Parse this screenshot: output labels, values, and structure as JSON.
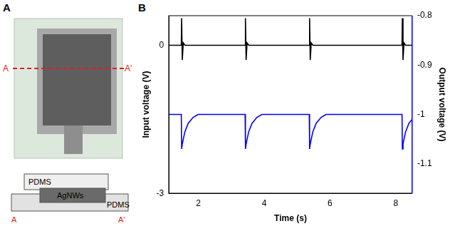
{
  "panel_a": {
    "panel_label": "A",
    "section_line": {
      "start": "A",
      "end": "A'"
    },
    "cross_section": {
      "layers": [
        "PDMS",
        "AgNWs",
        "PDMS"
      ],
      "start": "A",
      "end": "A'"
    }
  },
  "chart_data": {
    "panel_label": "B",
    "type": "line",
    "x_label": "Time (s)",
    "y_label": "Input voltage (V)",
    "y2_label": "Output voltage (V)",
    "x": [
      1.1,
      1.48,
      1.49,
      1.51,
      1.54,
      1.59,
      1.69,
      1.84,
      1.99,
      3.42,
      3.43,
      3.45,
      3.48,
      3.53,
      3.63,
      3.78,
      3.93,
      5.37,
      5.38,
      5.4,
      5.43,
      5.48,
      5.58,
      5.73,
      5.88,
      8.19,
      8.2,
      8.22,
      8.25,
      8.3,
      8.4,
      8.5
    ],
    "series": [
      {
        "color": "#000000",
        "values": [
          0,
          0,
          0.55,
          -0.3,
          0.05,
          0,
          0,
          0,
          0,
          0,
          0.55,
          -0.3,
          0.05,
          0,
          0,
          0,
          0,
          0,
          0.55,
          -0.3,
          0.05,
          0,
          0,
          0,
          0,
          0,
          0.55,
          -0.3,
          0.05,
          0,
          0,
          0
        ]
      },
      {
        "color": "#0000ff",
        "axis": "y2",
        "values": [
          -1.0,
          -1.0,
          -1.07,
          -1.06,
          -1.05,
          -1.035,
          -1.018,
          -1.006,
          -1.0,
          -1.0,
          -1.07,
          -1.06,
          -1.05,
          -1.035,
          -1.018,
          -1.006,
          -1.0,
          -1.0,
          -1.07,
          -1.06,
          -1.05,
          -1.035,
          -1.018,
          -1.006,
          -1.0,
          -1.0,
          -1.07,
          -1.06,
          -1.05,
          -1.035,
          -1.018,
          -1.01
        ]
      }
    ],
    "xlim": [
      1.1,
      8.5
    ],
    "xticks": [
      2,
      4,
      6,
      8
    ],
    "ylim": [
      -3,
      0.6
    ],
    "yticks": [
      -3,
      0
    ],
    "y2lim": [
      -1.16,
      -0.8
    ],
    "y2ticks": [
      -1.1,
      -1,
      -0.9,
      -0.8
    ],
    "grid": false
  }
}
